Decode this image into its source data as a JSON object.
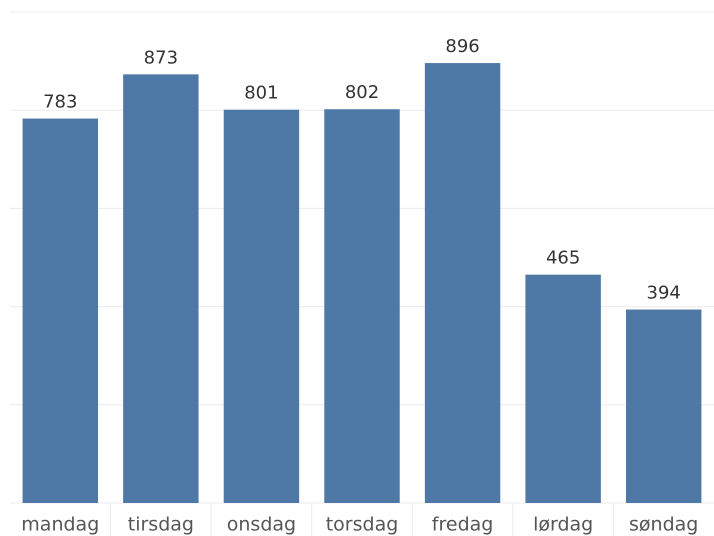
{
  "chart_data": {
    "type": "bar",
    "categories": [
      "mandag",
      "tirsdag",
      "onsdag",
      "torsdag",
      "fredag",
      "lørdag",
      "søndag"
    ],
    "values": [
      783,
      873,
      801,
      802,
      896,
      465,
      394
    ],
    "color": "#4e79a7",
    "ylim": [
      0,
      1000
    ],
    "yticks": [
      0,
      200,
      400,
      600,
      800,
      1000
    ],
    "grid": true
  }
}
